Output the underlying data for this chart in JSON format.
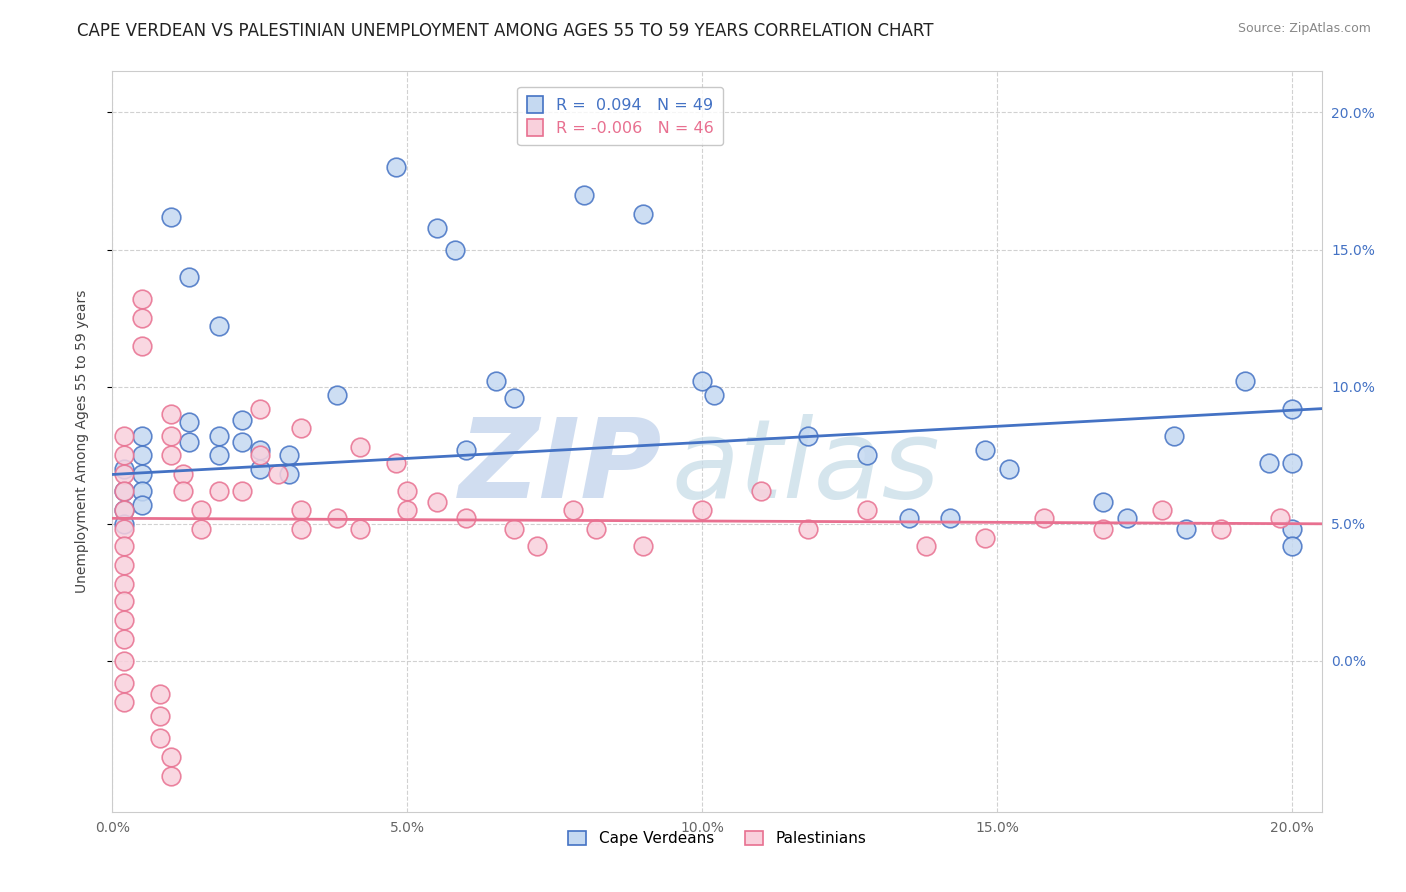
{
  "title": "CAPE VERDEAN VS PALESTINIAN UNEMPLOYMENT AMONG AGES 55 TO 59 YEARS CORRELATION CHART",
  "source": "Source: ZipAtlas.com",
  "ylabel": "Unemployment Among Ages 55 to 59 years",
  "xlim": [
    0.0,
    0.205
  ],
  "ylim": [
    -0.055,
    0.215
  ],
  "xticks": [
    0.0,
    0.05,
    0.1,
    0.15,
    0.2
  ],
  "yticks": [
    0.0,
    0.05,
    0.1,
    0.15,
    0.2
  ],
  "xticklabels": [
    "0.0%",
    "5.0%",
    "10.0%",
    "15.0%",
    "20.0%"
  ],
  "yticklabels": [
    "0.0%",
    "5.0%",
    "10.0%",
    "15.0%",
    "20.0%"
  ],
  "blue_scatter": [
    [
      0.002,
      0.07
    ],
    [
      0.002,
      0.062
    ],
    [
      0.002,
      0.055
    ],
    [
      0.002,
      0.05
    ],
    [
      0.005,
      0.082
    ],
    [
      0.005,
      0.075
    ],
    [
      0.005,
      0.068
    ],
    [
      0.005,
      0.062
    ],
    [
      0.005,
      0.057
    ],
    [
      0.01,
      0.162
    ],
    [
      0.013,
      0.14
    ],
    [
      0.013,
      0.087
    ],
    [
      0.013,
      0.08
    ],
    [
      0.018,
      0.122
    ],
    [
      0.018,
      0.082
    ],
    [
      0.018,
      0.075
    ],
    [
      0.022,
      0.088
    ],
    [
      0.022,
      0.08
    ],
    [
      0.025,
      0.077
    ],
    [
      0.025,
      0.07
    ],
    [
      0.03,
      0.075
    ],
    [
      0.03,
      0.068
    ],
    [
      0.038,
      0.097
    ],
    [
      0.048,
      0.18
    ],
    [
      0.055,
      0.158
    ],
    [
      0.058,
      0.15
    ],
    [
      0.06,
      0.077
    ],
    [
      0.065,
      0.102
    ],
    [
      0.068,
      0.096
    ],
    [
      0.08,
      0.17
    ],
    [
      0.09,
      0.163
    ],
    [
      0.1,
      0.102
    ],
    [
      0.102,
      0.097
    ],
    [
      0.118,
      0.082
    ],
    [
      0.128,
      0.075
    ],
    [
      0.148,
      0.077
    ],
    [
      0.152,
      0.07
    ],
    [
      0.168,
      0.058
    ],
    [
      0.172,
      0.052
    ],
    [
      0.18,
      0.082
    ],
    [
      0.182,
      0.048
    ],
    [
      0.192,
      0.102
    ],
    [
      0.196,
      0.072
    ],
    [
      0.2,
      0.092
    ],
    [
      0.2,
      0.048
    ],
    [
      0.2,
      0.042
    ],
    [
      0.135,
      0.052
    ],
    [
      0.142,
      0.052
    ],
    [
      0.2,
      0.072
    ]
  ],
  "pink_scatter": [
    [
      0.002,
      0.082
    ],
    [
      0.002,
      0.075
    ],
    [
      0.002,
      0.068
    ],
    [
      0.002,
      0.062
    ],
    [
      0.002,
      0.055
    ],
    [
      0.002,
      0.048
    ],
    [
      0.002,
      0.042
    ],
    [
      0.002,
      0.035
    ],
    [
      0.002,
      0.028
    ],
    [
      0.002,
      0.022
    ],
    [
      0.002,
      0.015
    ],
    [
      0.002,
      0.008
    ],
    [
      0.002,
      0.0
    ],
    [
      0.002,
      -0.008
    ],
    [
      0.002,
      -0.015
    ],
    [
      0.005,
      0.132
    ],
    [
      0.005,
      0.125
    ],
    [
      0.005,
      0.115
    ],
    [
      0.008,
      -0.012
    ],
    [
      0.008,
      -0.02
    ],
    [
      0.008,
      -0.028
    ],
    [
      0.01,
      0.09
    ],
    [
      0.01,
      0.082
    ],
    [
      0.01,
      0.075
    ],
    [
      0.01,
      -0.035
    ],
    [
      0.01,
      -0.042
    ],
    [
      0.012,
      0.068
    ],
    [
      0.012,
      0.062
    ],
    [
      0.015,
      0.055
    ],
    [
      0.015,
      0.048
    ],
    [
      0.018,
      0.062
    ],
    [
      0.022,
      0.062
    ],
    [
      0.025,
      0.075
    ],
    [
      0.028,
      0.068
    ],
    [
      0.032,
      0.055
    ],
    [
      0.032,
      0.048
    ],
    [
      0.038,
      0.052
    ],
    [
      0.042,
      0.048
    ],
    [
      0.05,
      0.062
    ],
    [
      0.05,
      0.055
    ],
    [
      0.055,
      0.058
    ],
    [
      0.06,
      0.052
    ],
    [
      0.068,
      0.048
    ],
    [
      0.072,
      0.042
    ],
    [
      0.078,
      0.055
    ],
    [
      0.082,
      0.048
    ],
    [
      0.09,
      0.042
    ],
    [
      0.1,
      0.055
    ],
    [
      0.11,
      0.062
    ],
    [
      0.118,
      0.048
    ],
    [
      0.128,
      0.055
    ],
    [
      0.138,
      0.042
    ],
    [
      0.148,
      0.045
    ],
    [
      0.158,
      0.052
    ],
    [
      0.168,
      0.048
    ],
    [
      0.178,
      0.055
    ],
    [
      0.188,
      0.048
    ],
    [
      0.198,
      0.052
    ],
    [
      0.025,
      0.092
    ],
    [
      0.032,
      0.085
    ],
    [
      0.042,
      0.078
    ],
    [
      0.048,
      0.072
    ]
  ],
  "blue_line_x": [
    0.0,
    0.205
  ],
  "blue_line_y": [
    0.068,
    0.092
  ],
  "pink_line_x": [
    0.0,
    0.205
  ],
  "pink_line_y": [
    0.052,
    0.05
  ],
  "blue_color": "#4472c4",
  "blue_fill_color": "#c5d9f1",
  "pink_color": "#e87090",
  "pink_fill_color": "#f9d0dc",
  "grid_color": "#cccccc",
  "title_fontsize": 12,
  "label_fontsize": 10,
  "tick_fontsize": 10,
  "tick_color_y": "#4472c4",
  "tick_color_x": "#666666",
  "watermark_zip_color": "#c8d8ee",
  "watermark_atlas_color": "#c8dde8"
}
